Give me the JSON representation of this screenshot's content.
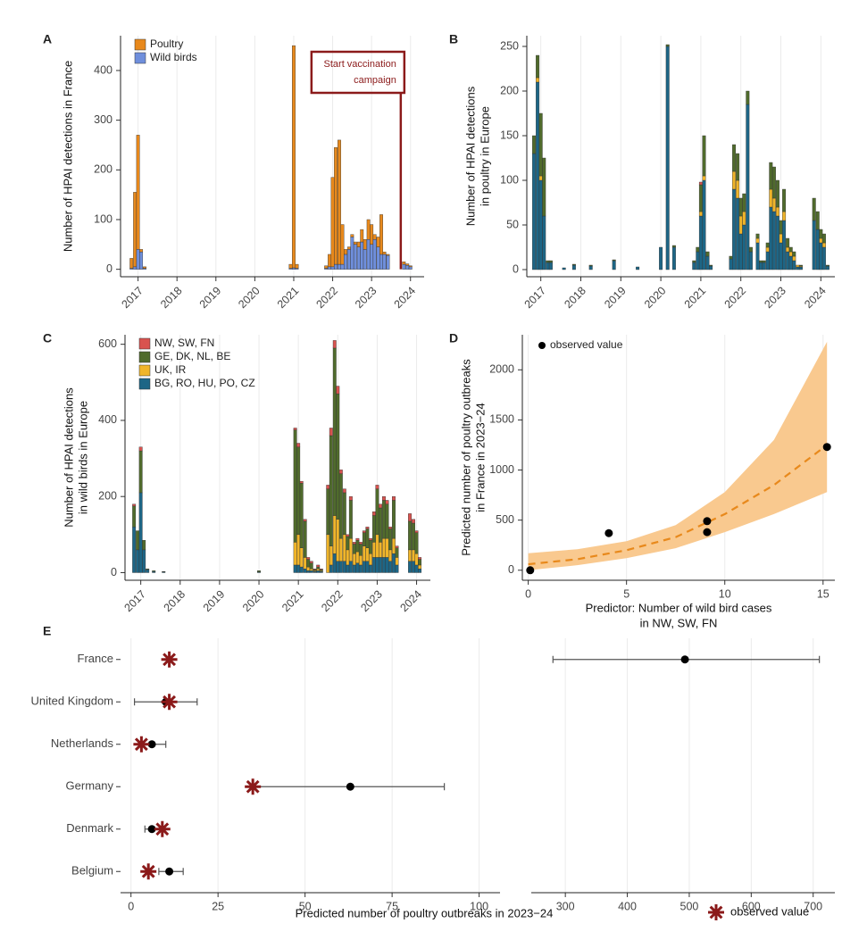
{
  "chart_data": [
    {
      "type": "bar",
      "panel": "A",
      "ylabel": [
        "Number of HPAI detections in France"
      ],
      "x": [
        2016.83,
        2016.92,
        2017.0,
        2017.08,
        2017.17,
        2020.92,
        2021.0,
        2021.08,
        2021.83,
        2021.92,
        2022.0,
        2022.08,
        2022.17,
        2022.25,
        2022.33,
        2022.42,
        2022.5,
        2022.58,
        2022.67,
        2022.75,
        2022.83,
        2022.92,
        2023.0,
        2023.08,
        2023.17,
        2023.25,
        2023.33,
        2023.42,
        2023.83,
        2023.92,
        2024.0
      ],
      "series": [
        {
          "name": "Poultry",
          "color": "#e8891c",
          "values": [
            20,
            150,
            230,
            5,
            3,
            8,
            447,
            8,
            5,
            25,
            180,
            235,
            250,
            80,
            10,
            5,
            5,
            5,
            10,
            25,
            20,
            40,
            40,
            10,
            20,
            80,
            5,
            2,
            5,
            3,
            2
          ]
        },
        {
          "name": "Wild birds",
          "color": "#6f8fdc",
          "values": [
            2,
            5,
            40,
            35,
            2,
            2,
            3,
            2,
            2,
            5,
            5,
            10,
            10,
            10,
            30,
            40,
            65,
            50,
            45,
            55,
            40,
            60,
            50,
            60,
            45,
            30,
            30,
            28,
            10,
            8,
            5
          ]
        }
      ],
      "xlim": [
        2016.55,
        2024.35
      ],
      "xticks": [
        2017,
        2018,
        2019,
        2020,
        2021,
        2022,
        2023,
        2024
      ],
      "ylim": [
        -15,
        470
      ],
      "yticks": [
        0,
        100,
        200,
        300,
        400
      ],
      "grid": true,
      "legend": "top-left",
      "annotation": {
        "lines": [
          "Start vaccination",
          "campaign"
        ],
        "x": 2023.75,
        "color": "#8b1a1a"
      }
    },
    {
      "type": "bar",
      "panel": "B",
      "ylabel": [
        "Number of HPAI detections",
        "in poultry in Europe"
      ],
      "x": [
        2016.83,
        2016.92,
        2017.0,
        2017.08,
        2017.17,
        2017.25,
        2017.58,
        2017.83,
        2018.25,
        2018.83,
        2019.42,
        2020.0,
        2020.17,
        2020.33,
        2020.83,
        2020.92,
        2021.0,
        2021.08,
        2021.17,
        2021.25,
        2021.75,
        2021.83,
        2021.92,
        2022.0,
        2022.08,
        2022.17,
        2022.25,
        2022.42,
        2022.5,
        2022.58,
        2022.67,
        2022.75,
        2022.83,
        2022.92,
        2023.0,
        2023.08,
        2023.17,
        2023.25,
        2023.33,
        2023.42,
        2023.5,
        2023.83,
        2023.92,
        2024.0,
        2024.08,
        2024.17
      ],
      "series": [
        {
          "color": "#d9534f",
          "values": [
            0,
            0,
            0,
            0,
            0,
            0,
            0,
            0,
            0,
            0,
            0,
            0,
            0,
            0,
            0,
            0,
            3,
            0,
            0,
            0,
            0,
            0,
            0,
            0,
            0,
            0,
            0,
            0,
            0,
            0,
            0,
            0,
            0,
            0,
            0,
            0,
            0,
            0,
            0,
            0,
            0,
            0,
            0,
            0,
            0,
            0
          ]
        },
        {
          "color": "#506b2c",
          "values": [
            20,
            25,
            70,
            65,
            2,
            2,
            0,
            1,
            1,
            1,
            0,
            0,
            2,
            2,
            2,
            5,
            30,
            45,
            5,
            1,
            3,
            30,
            30,
            20,
            20,
            15,
            5,
            5,
            2,
            2,
            5,
            30,
            35,
            30,
            15,
            25,
            10,
            5,
            5,
            0,
            1,
            25,
            20,
            10,
            10,
            1
          ]
        },
        {
          "color": "#f0b52a",
          "values": [
            0,
            5,
            5,
            0,
            0,
            0,
            0,
            0,
            0,
            0,
            0,
            0,
            0,
            0,
            0,
            0,
            5,
            5,
            0,
            0,
            0,
            20,
            20,
            20,
            15,
            0,
            0,
            5,
            0,
            0,
            5,
            20,
            15,
            10,
            10,
            10,
            5,
            5,
            5,
            2,
            1,
            0,
            0,
            5,
            5,
            0
          ]
        },
        {
          "color": "#1d6686",
          "values": [
            130,
            210,
            100,
            60,
            8,
            8,
            2,
            5,
            4,
            10,
            3,
            25,
            250,
            25,
            8,
            20,
            60,
            100,
            15,
            4,
            12,
            90,
            80,
            40,
            50,
            185,
            20,
            30,
            8,
            8,
            20,
            70,
            65,
            60,
            30,
            55,
            20,
            15,
            10,
            3,
            3,
            55,
            45,
            30,
            25,
            4
          ]
        }
      ],
      "xlim": [
        2016.65,
        2024.35
      ],
      "xticks": [
        2017,
        2018,
        2019,
        2020,
        2021,
        2022,
        2023,
        2024
      ],
      "ylim": [
        -8,
        262
      ],
      "yticks": [
        0,
        50,
        100,
        150,
        200,
        250
      ],
      "grid": true
    },
    {
      "type": "bar",
      "panel": "C",
      "ylabel": [
        "Number of HPAI detections",
        "in wild birds in Europe"
      ],
      "x": [
        2016.83,
        2016.92,
        2017.0,
        2017.08,
        2017.17,
        2017.33,
        2017.58,
        2020.0,
        2020.92,
        2021.0,
        2021.08,
        2021.17,
        2021.25,
        2021.33,
        2021.42,
        2021.5,
        2021.58,
        2021.75,
        2021.83,
        2021.92,
        2022.0,
        2022.08,
        2022.17,
        2022.25,
        2022.33,
        2022.42,
        2022.5,
        2022.58,
        2022.67,
        2022.75,
        2022.83,
        2022.92,
        2023.0,
        2023.08,
        2023.17,
        2023.25,
        2023.33,
        2023.42,
        2023.5,
        2023.83,
        2023.92,
        2024.0,
        2024.08
      ],
      "series": [
        {
          "name": "NW, SW, FN",
          "color": "#d9534f",
          "values": [
            5,
            0,
            10,
            0,
            0,
            0,
            0,
            0,
            5,
            10,
            5,
            5,
            5,
            5,
            2,
            5,
            2,
            10,
            20,
            20,
            20,
            10,
            10,
            5,
            10,
            5,
            5,
            5,
            5,
            5,
            5,
            10,
            10,
            10,
            10,
            10,
            5,
            10,
            5,
            20,
            10,
            5,
            5
          ]
        },
        {
          "name": "GE, DK, NL, BE",
          "color": "#506b2c",
          "values": [
            55,
            50,
            110,
            25,
            2,
            2,
            1,
            3,
            295,
            230,
            170,
            95,
            20,
            15,
            3,
            5,
            3,
            120,
            290,
            440,
            330,
            170,
            110,
            35,
            100,
            25,
            30,
            30,
            35,
            50,
            35,
            70,
            120,
            90,
            100,
            90,
            55,
            100,
            25,
            75,
            70,
            55,
            15
          ]
        },
        {
          "name": "UK, IR",
          "color": "#f0b52a",
          "values": [
            0,
            0,
            0,
            0,
            0,
            0,
            0,
            0,
            60,
            80,
            50,
            30,
            10,
            5,
            2,
            5,
            2,
            100,
            50,
            100,
            110,
            60,
            70,
            40,
            60,
            30,
            30,
            25,
            40,
            35,
            30,
            40,
            60,
            40,
            50,
            50,
            30,
            40,
            20,
            30,
            30,
            30,
            10
          ]
        },
        {
          "name": "BG, RO, HU, PO, CZ",
          "color": "#1d6686",
          "values": [
            120,
            60,
            210,
            60,
            8,
            3,
            2,
            2,
            20,
            20,
            15,
            10,
            5,
            5,
            3,
            5,
            3,
            0,
            20,
            50,
            30,
            30,
            30,
            20,
            30,
            20,
            25,
            20,
            30,
            30,
            20,
            40,
            40,
            40,
            40,
            40,
            30,
            50,
            20,
            30,
            30,
            20,
            10
          ]
        }
      ],
      "xlim": [
        2016.6,
        2024.35
      ],
      "xticks": [
        2017,
        2018,
        2019,
        2020,
        2021,
        2022,
        2023,
        2024
      ],
      "ylim": [
        -20,
        625
      ],
      "yticks": [
        0,
        200,
        400,
        600
      ],
      "grid": true,
      "legend": "top-left"
    },
    {
      "type": "scatter",
      "panel": "D",
      "ylabel": [
        "Predicted number of poultry outbreaks",
        "in France in 2023−24"
      ],
      "xlabel": [
        "Predictor: Number of wild bird cases",
        "in NW, SW, FN"
      ],
      "series": [
        {
          "name": "observed value",
          "color": "#000000",
          "x": [
            0.1,
            4.1,
            9.1,
            9.1,
            15.2
          ],
          "values": [
            0,
            370,
            380,
            490,
            1230
          ]
        }
      ],
      "fit": {
        "color": "#e8891c",
        "band_color": "#f9c98f",
        "x": [
          0,
          2.5,
          5,
          7.5,
          10,
          12.5,
          15.2
        ],
        "values": [
          60,
          110,
          200,
          330,
          560,
          850,
          1250
        ],
        "lower": [
          0,
          50,
          120,
          220,
          380,
          560,
          780
        ],
        "upper": [
          170,
          210,
          290,
          450,
          780,
          1300,
          2280
        ]
      },
      "xlim": [
        -0.3,
        15.6
      ],
      "xticks": [
        0,
        5,
        10,
        15
      ],
      "ylim": [
        -100,
        2350
      ],
      "yticks": [
        0,
        500,
        1000,
        1500,
        2000
      ],
      "grid": true,
      "legend": "top-left"
    },
    {
      "type": "interval",
      "panel": "E",
      "xlabel": "Predicted number of poultry outbreaks in 2023−24",
      "categories": [
        "France",
        "United Kingdom",
        "Netherlands",
        "Germany",
        "Denmark",
        "Belgium"
      ],
      "predicted": {
        "color": "#000000",
        "values": [
          493,
          10,
          6,
          63,
          6,
          11
        ],
        "lower": [
          280,
          1,
          3,
          35,
          4,
          8
        ],
        "upper": [
          710,
          19,
          10,
          90,
          9,
          15
        ]
      },
      "observed": {
        "name": "observed value",
        "color": "#8b1a1a",
        "values": [
          11,
          11,
          3,
          35,
          9,
          5
        ]
      },
      "xlim": [
        -3,
        106
      ],
      "xticks": [
        0,
        25,
        50,
        75,
        100
      ],
      "x2lim": [
        245,
        735
      ],
      "x2ticks": [
        300,
        400,
        500,
        600,
        700
      ],
      "grid": true,
      "legend": "bottom-right"
    }
  ]
}
